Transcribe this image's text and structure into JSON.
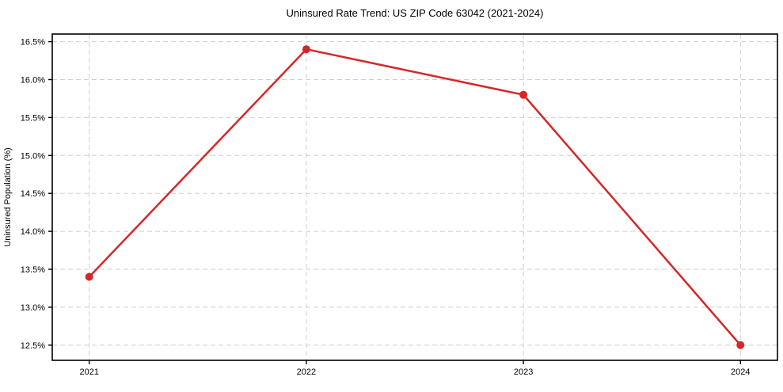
{
  "chart_data": {
    "type": "line",
    "title": "Uninsured Rate Trend: US ZIP Code 63042 (2021-2024)",
    "xlabel": "",
    "ylabel": "Uninsured Population (%)",
    "categories": [
      "2021",
      "2022",
      "2023",
      "2024"
    ],
    "series": [
      {
        "name": "Uninsured Population (%)",
        "values": [
          13.4,
          16.4,
          15.8,
          12.5
        ]
      }
    ],
    "ylim": [
      12.3,
      16.6
    ],
    "yticks": [
      12.5,
      13.0,
      13.5,
      14.0,
      14.5,
      15.0,
      15.5,
      16.0,
      16.5
    ],
    "ytick_labels": [
      "12.5%",
      "13.0%",
      "13.5%",
      "14.0%",
      "14.5%",
      "15.0%",
      "15.5%",
      "16.0%",
      "16.5%"
    ],
    "xtick_labels": [
      "2021",
      "2022",
      "2023",
      "2024"
    ],
    "grid": true,
    "grid_style": "dashed",
    "legend": "none",
    "marker": "circle",
    "colors": {
      "line": "#d62728",
      "marker": "#d62728",
      "grid": "#cfcfcf",
      "spine": "#000000",
      "text": "#000000",
      "background": "#ffffff"
    }
  }
}
